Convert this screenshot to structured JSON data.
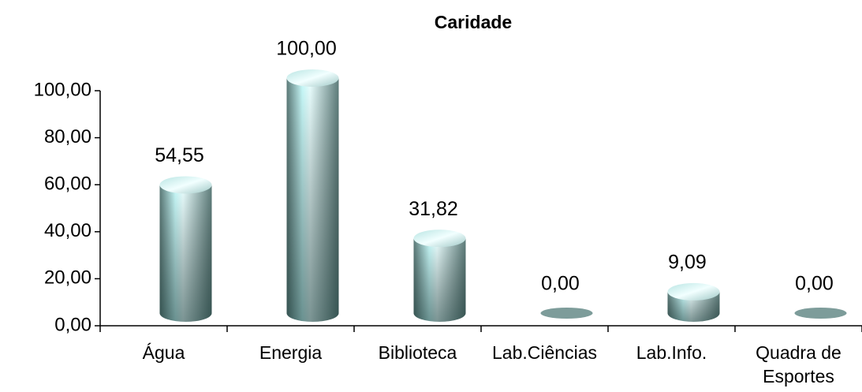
{
  "chart_data": {
    "type": "bar",
    "title": "Caridade",
    "categories": [
      "Água",
      "Energia",
      "Biblioteca",
      "Lab.Ciências",
      "Lab.Info.",
      "Quadra de Esportes"
    ],
    "values": [
      54.55,
      100,
      31.82,
      0,
      9.09,
      0
    ],
    "value_labels": [
      "54,55",
      "100,00",
      "31,82",
      "0,00",
      "9,09",
      "0,00"
    ],
    "color": "#c8fafa",
    "ylim": [
      0,
      100
    ],
    "yticks": [
      {
        "value": 0,
        "label": "0,00"
      },
      {
        "value": 20,
        "label": "20,00"
      },
      {
        "value": 40,
        "label": "40,00"
      },
      {
        "value": 60,
        "label": "60,00"
      },
      {
        "value": 80,
        "label": "80,00"
      },
      {
        "value": 100,
        "label": "100,00"
      }
    ]
  }
}
